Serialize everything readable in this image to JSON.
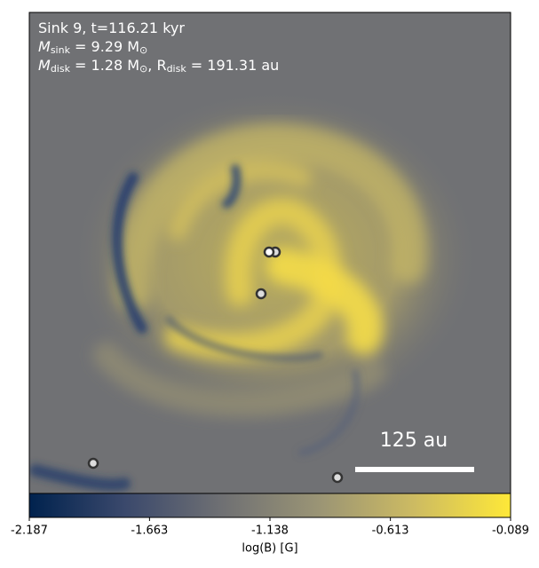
{
  "chart_data": {
    "type": "image",
    "annotations": [
      [
        {
          "t": "Sink 9, t=116.21 kyr"
        }
      ],
      [
        {
          "t": "M"
        },
        {
          "sub": "sink"
        },
        {
          "t": " = 9.29 M"
        },
        {
          "sub": "⊙"
        }
      ],
      [
        {
          "t": "M"
        },
        {
          "sub": "disk"
        },
        {
          "t": " = 1.28 M"
        },
        {
          "sub": "⊙"
        },
        {
          "t": ", R"
        },
        {
          "sub": "disk"
        },
        {
          "t": " = 191.31 au"
        }
      ]
    ],
    "scale_bar_label": "125 au",
    "colorbar_label": "log(B) [G]",
    "clim": [
      -2.187,
      -0.089
    ],
    "cticks": [
      -2.187,
      -1.663,
      -1.138,
      -0.613,
      -0.089
    ],
    "colormap": "cividis",
    "colormap_colors": [
      "#00224e",
      "#3b496c",
      "#6f7073",
      "#9a9475",
      "#cdbb62",
      "#fee838"
    ]
  }
}
